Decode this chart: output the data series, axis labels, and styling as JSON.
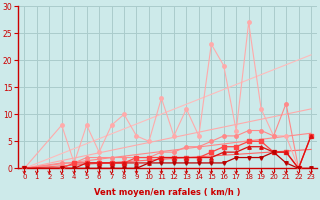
{
  "background_color": "#cdeaea",
  "grid_color": "#aacccc",
  "xlabel": "Vent moyen/en rafales ( km/h )",
  "xlim": [
    -0.5,
    23.5
  ],
  "ylim": [
    0,
    30
  ],
  "xticks": [
    0,
    1,
    2,
    3,
    4,
    5,
    6,
    7,
    8,
    9,
    10,
    11,
    12,
    13,
    14,
    15,
    16,
    17,
    18,
    19,
    20,
    21,
    22,
    23
  ],
  "yticks": [
    0,
    5,
    10,
    15,
    20,
    25,
    30
  ],
  "series": [
    {
      "x": [
        0,
        3,
        4,
        5,
        6,
        7,
        8,
        9,
        10,
        11,
        12,
        13,
        14,
        15,
        16,
        17,
        18,
        19,
        20,
        21,
        22,
        23
      ],
      "y": [
        0,
        8,
        1,
        8,
        3,
        8,
        10,
        6,
        5,
        13,
        6,
        11,
        6,
        23,
        19,
        7,
        27,
        11,
        6,
        6,
        0,
        6
      ],
      "color": "#ffaaaa",
      "linewidth": 0.8,
      "marker": "o",
      "markersize": 2.5,
      "zorder": 2
    },
    {
      "x": [
        0,
        23
      ],
      "y": [
        0,
        21
      ],
      "color": "#ffbbbb",
      "linewidth": 0.8,
      "marker": null,
      "markersize": 0,
      "zorder": 1
    },
    {
      "x": [
        0,
        23
      ],
      "y": [
        0,
        11
      ],
      "color": "#ffaaaa",
      "linewidth": 0.8,
      "marker": null,
      "markersize": 0,
      "zorder": 1
    },
    {
      "x": [
        0,
        23
      ],
      "y": [
        0,
        6.5
      ],
      "color": "#ff8888",
      "linewidth": 0.8,
      "marker": null,
      "markersize": 0,
      "zorder": 1
    },
    {
      "x": [
        0,
        23
      ],
      "y": [
        0,
        3.5
      ],
      "color": "#ff6666",
      "linewidth": 0.8,
      "marker": null,
      "markersize": 0,
      "zorder": 1
    },
    {
      "x": [
        0,
        3,
        4,
        5,
        6,
        7,
        8,
        9,
        10,
        11,
        12,
        13,
        14,
        15,
        16,
        17,
        18,
        19,
        20,
        21,
        22,
        23
      ],
      "y": [
        0,
        1,
        1,
        2,
        2,
        2,
        2,
        2,
        2,
        3,
        3,
        4,
        4,
        5,
        6,
        6,
        7,
        7,
        6,
        12,
        0,
        6
      ],
      "color": "#ff8888",
      "linewidth": 0.8,
      "marker": "o",
      "markersize": 2.5,
      "zorder": 3
    },
    {
      "x": [
        0,
        3,
        4,
        5,
        6,
        7,
        8,
        9,
        10,
        11,
        12,
        13,
        14,
        15,
        16,
        17,
        18,
        19,
        20,
        21,
        22,
        23
      ],
      "y": [
        0,
        0,
        1,
        1,
        1,
        1,
        1,
        2,
        2,
        2,
        2,
        2,
        2,
        3,
        4,
        4,
        5,
        5,
        3,
        3,
        0,
        6
      ],
      "color": "#ff4444",
      "linewidth": 0.9,
      "marker": "s",
      "markersize": 2.5,
      "zorder": 4
    },
    {
      "x": [
        0,
        3,
        4,
        5,
        6,
        7,
        8,
        9,
        10,
        11,
        12,
        13,
        14,
        15,
        16,
        17,
        18,
        19,
        20,
        21,
        22,
        23
      ],
      "y": [
        0,
        0,
        0,
        1,
        1,
        1,
        1,
        1,
        1,
        2,
        2,
        2,
        2,
        2,
        3,
        3,
        4,
        4,
        3,
        3,
        0,
        6
      ],
      "color": "#dd1111",
      "linewidth": 0.9,
      "marker": "^",
      "markersize": 2.5,
      "zorder": 4
    },
    {
      "x": [
        0,
        3,
        4,
        5,
        6,
        7,
        8,
        9,
        10,
        11,
        12,
        13,
        14,
        15,
        16,
        17,
        18,
        19,
        20,
        21,
        22,
        23
      ],
      "y": [
        0,
        0,
        0,
        0,
        0,
        0,
        0,
        0,
        1,
        1,
        1,
        1,
        1,
        1,
        1,
        2,
        2,
        2,
        3,
        1,
        0,
        0
      ],
      "color": "#bb0000",
      "linewidth": 0.9,
      "marker": "v",
      "markersize": 2.5,
      "zorder": 4
    }
  ],
  "arrow_color": "#cc0000",
  "axis_label_color": "#cc0000",
  "tick_label_color": "#cc0000"
}
